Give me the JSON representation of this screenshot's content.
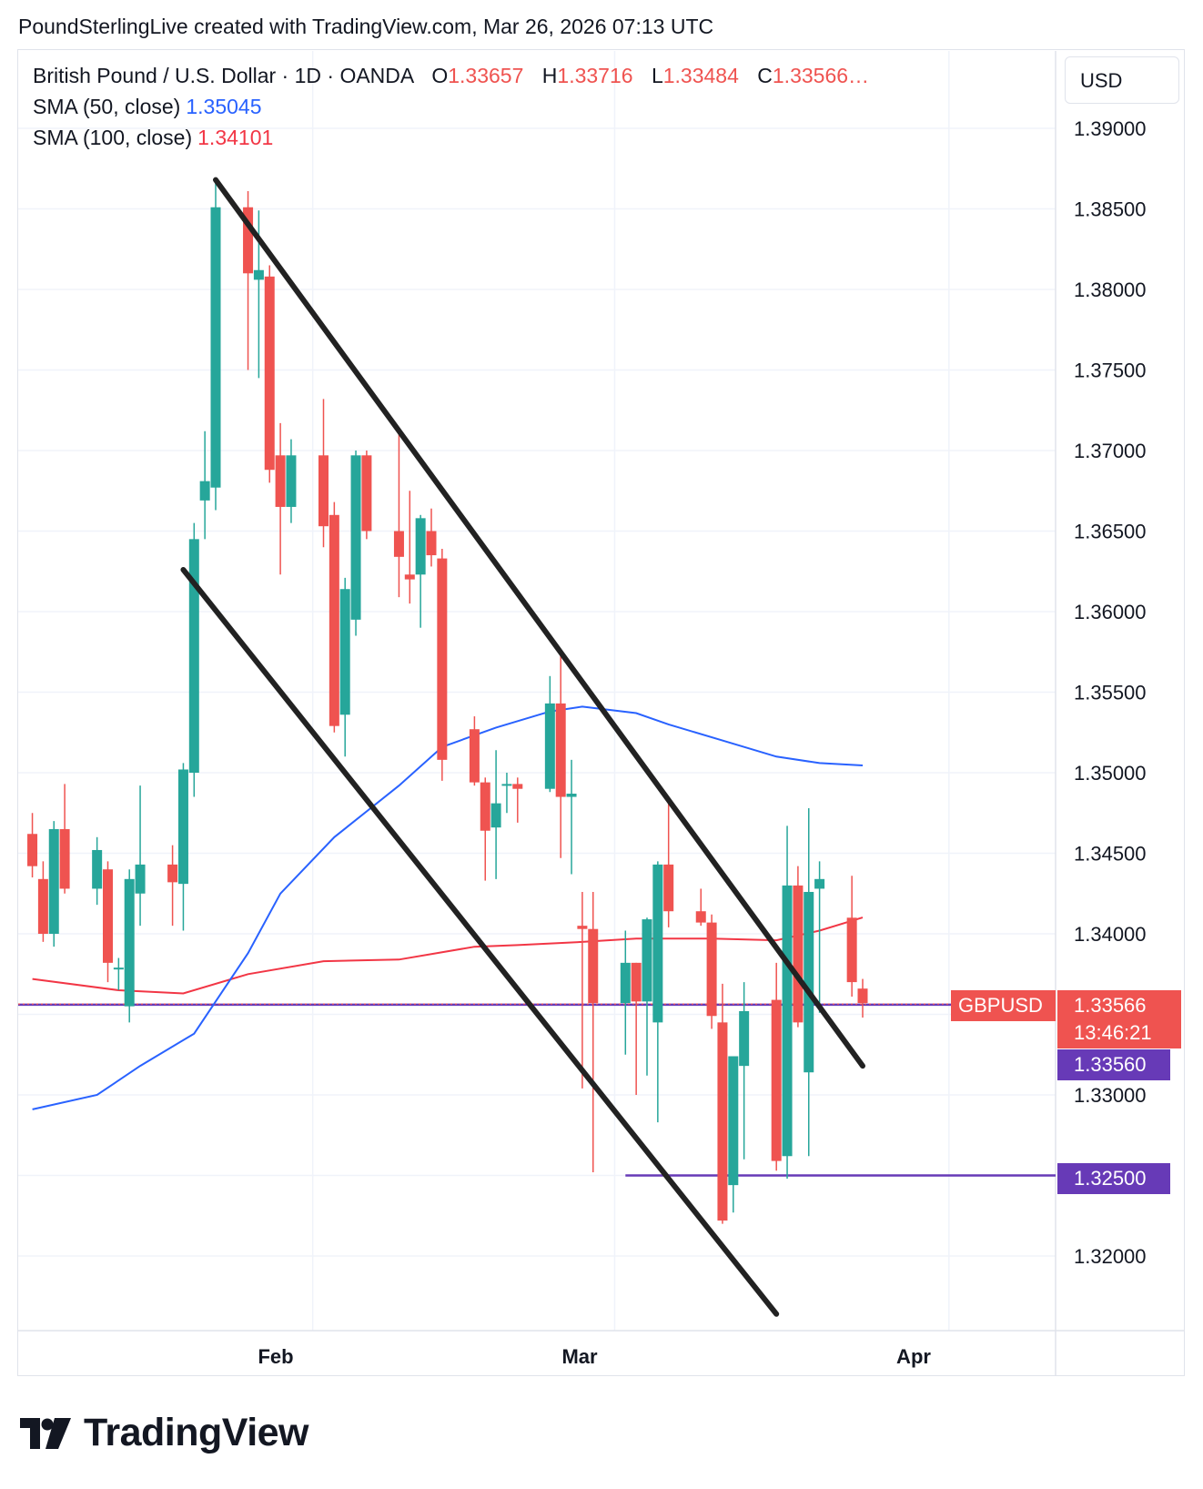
{
  "caption": "PoundSterlingLive created with TradingView.com, Mar 26, 2026 07:13 UTC",
  "legend": {
    "symbol_line": "British Pound / U.S. Dollar · 1D · OANDA",
    "o_label": "O",
    "o_value": "1.33657",
    "h_label": "H",
    "h_value": "1.33716",
    "l_label": "L",
    "l_value": "1.33484",
    "c_label": "C",
    "c_value": "1.33566…",
    "sma50_label": "SMA (50, close)",
    "sma50_value": "1.35045",
    "sma100_label": "SMA (100, close)",
    "sma100_value": "1.34101"
  },
  "currency": "USD",
  "price_tag": {
    "symbol": "GBPUSD",
    "price": "1.33566",
    "countdown": "13:46:21"
  },
  "levels": [
    {
      "label": "1.33560"
    },
    {
      "label": "1.32500"
    }
  ],
  "brand": "TradingView",
  "colors": {
    "up": "#26a69a",
    "down": "#ef5350",
    "sma50": "#2962ff",
    "sma100": "#f23645",
    "level": "#673ab7",
    "trendline": "#222222",
    "grid": "#f0f3fa"
  },
  "chart_data": {
    "type": "candlestick",
    "title": "British Pound / U.S. Dollar · 1D · OANDA",
    "ylim": [
      1.3135,
      1.3935
    ],
    "y_ticks": [
      1.32,
      1.325,
      1.33,
      1.335,
      1.34,
      1.345,
      1.35,
      1.355,
      1.36,
      1.365,
      1.37,
      1.375,
      1.38,
      1.385,
      1.39
    ],
    "y_tick_labels": [
      "1.32000",
      "1.32500",
      "1.33000",
      "1.33500",
      "1.34000",
      "1.34500",
      "1.35000",
      "1.35500",
      "1.36000",
      "1.36500",
      "1.37000",
      "1.37500",
      "1.38000",
      "1.38500",
      "1.39000"
    ],
    "x_ticks": [
      "Feb",
      "Mar",
      "Apr"
    ],
    "grid": true,
    "series": [
      {
        "name": "British Pound / U.S. Dollar",
        "candles": [
          [
            "2026-01-06",
            1.3462,
            1.3475,
            1.3435,
            1.3442
          ],
          [
            "2026-01-07",
            1.3434,
            1.3445,
            1.3395,
            1.34
          ],
          [
            "2026-01-08",
            1.34,
            1.347,
            1.3392,
            1.3465
          ],
          [
            "2026-01-09",
            1.3465,
            1.3493,
            1.3425,
            1.3428
          ],
          [
            "2026-01-12",
            1.3428,
            1.346,
            1.3418,
            1.3452
          ],
          [
            "2026-01-13",
            1.344,
            1.3445,
            1.337,
            1.3382
          ],
          [
            "2026-01-14",
            1.3379,
            1.3385,
            1.3365,
            1.3379
          ],
          [
            "2026-01-15",
            1.3355,
            1.344,
            1.3345,
            1.3434
          ],
          [
            "2026-01-16",
            1.3425,
            1.3492,
            1.3405,
            1.3443
          ],
          [
            "2026-01-19",
            1.3443,
            1.3455,
            1.3405,
            1.3432
          ],
          [
            "2026-01-20",
            1.3431,
            1.3506,
            1.3402,
            1.3502
          ],
          [
            "2026-01-21",
            1.35,
            1.3655,
            1.3485,
            1.3645
          ],
          [
            "2026-01-22",
            1.3669,
            1.3712,
            1.3645,
            1.3681
          ],
          [
            "2026-01-23",
            1.3677,
            1.3869,
            1.3663,
            1.3851
          ],
          [
            "2026-01-26",
            1.3851,
            1.3861,
            1.375,
            1.381
          ],
          [
            "2026-01-27",
            1.3806,
            1.3849,
            1.3745,
            1.3812
          ],
          [
            "2026-01-28",
            1.3808,
            1.3815,
            1.368,
            1.3688
          ],
          [
            "2026-01-29",
            1.3697,
            1.3717,
            1.3623,
            1.3665
          ],
          [
            "2026-01-30",
            1.3665,
            1.3707,
            1.3655,
            1.3697
          ],
          [
            "2026-02-02",
            1.3697,
            1.3732,
            1.364,
            1.3653
          ],
          [
            "2026-02-03",
            1.366,
            1.3668,
            1.3525,
            1.3529
          ],
          [
            "2026-02-04",
            1.3536,
            1.3621,
            1.351,
            1.3614
          ],
          [
            "2026-02-05",
            1.3595,
            1.37,
            1.3585,
            1.3697
          ],
          [
            "2026-02-06",
            1.3697,
            1.37,
            1.3645,
            1.365
          ],
          [
            "2026-02-09",
            1.365,
            1.371,
            1.3609,
            1.3634
          ],
          [
            "2026-02-10",
            1.3623,
            1.3675,
            1.3605,
            1.362
          ],
          [
            "2026-02-11",
            1.3623,
            1.366,
            1.359,
            1.3658
          ],
          [
            "2026-02-12",
            1.365,
            1.3664,
            1.3628,
            1.3635
          ],
          [
            "2026-02-13",
            1.3633,
            1.3639,
            1.3495,
            1.3508
          ],
          [
            "2026-02-16",
            1.3527,
            1.3535,
            1.3492,
            1.3494
          ],
          [
            "2026-02-17",
            1.3494,
            1.3497,
            1.3433,
            1.3464
          ],
          [
            "2026-02-18",
            1.3466,
            1.3514,
            1.3434,
            1.3481
          ],
          [
            "2026-02-19",
            1.3493,
            1.35,
            1.3475,
            1.3493
          ],
          [
            "2026-02-20",
            1.3493,
            1.3497,
            1.3469,
            1.349
          ],
          [
            "2026-02-23",
            1.349,
            1.356,
            1.3488,
            1.3543
          ],
          [
            "2026-02-24",
            1.3543,
            1.3575,
            1.3447,
            1.3485
          ],
          [
            "2026-02-25",
            1.3485,
            1.3508,
            1.3437,
            1.3487
          ],
          [
            "2026-02-26",
            1.3405,
            1.3426,
            1.3304,
            1.3403
          ],
          [
            "2026-02-27",
            1.3403,
            1.3426,
            1.3252,
            1.3357
          ],
          [
            "2026-03-02",
            1.3357,
            1.3402,
            1.3325,
            1.3382
          ],
          [
            "2026-03-03",
            1.3382,
            1.3382,
            1.33,
            1.3358
          ],
          [
            "2026-03-04",
            1.3358,
            1.341,
            1.3312,
            1.3409
          ],
          [
            "2026-03-05",
            1.3345,
            1.3445,
            1.3283,
            1.3443
          ],
          [
            "2026-03-06",
            1.3443,
            1.3484,
            1.3404,
            1.3414
          ],
          [
            "2026-03-09",
            1.3414,
            1.3428,
            1.3405,
            1.3407
          ],
          [
            "2026-03-10",
            1.3407,
            1.3412,
            1.3341,
            1.3349
          ],
          [
            "2026-03-11",
            1.3345,
            1.3369,
            1.322,
            1.3222
          ],
          [
            "2026-03-12",
            1.3244,
            1.3323,
            1.3227,
            1.3324
          ],
          [
            "2026-03-13",
            1.3318,
            1.337,
            1.326,
            1.3352
          ],
          [
            "2026-03-16",
            1.3359,
            1.3382,
            1.3253,
            1.3259
          ],
          [
            "2026-03-17",
            1.3262,
            1.3467,
            1.3248,
            1.343
          ],
          [
            "2026-03-18",
            1.343,
            1.3442,
            1.3342,
            1.3345
          ],
          [
            "2026-03-19",
            1.3314,
            1.3478,
            1.3262,
            1.3426
          ],
          [
            "2026-03-20",
            1.3428,
            1.3445,
            1.3351,
            1.3434
          ],
          [
            "2026-03-23",
            1.341,
            1.3436,
            1.3361,
            1.337
          ],
          [
            "2026-03-24",
            1.3366,
            1.3372,
            1.3348,
            1.3357
          ]
        ]
      },
      {
        "name": "SMA (50, close)",
        "points": [
          [
            "2026-01-06",
            1.3291
          ],
          [
            "2026-01-12",
            1.33
          ],
          [
            "2026-01-16",
            1.3318
          ],
          [
            "2026-01-21",
            1.3338
          ],
          [
            "2026-01-26",
            1.3388
          ],
          [
            "2026-01-29",
            1.3425
          ],
          [
            "2026-02-03",
            1.346
          ],
          [
            "2026-02-09",
            1.3492
          ],
          [
            "2026-02-13",
            1.3516
          ],
          [
            "2026-02-18",
            1.3528
          ],
          [
            "2026-02-23",
            1.3538
          ],
          [
            "2026-02-26",
            1.3541
          ],
          [
            "2026-03-03",
            1.3537
          ],
          [
            "2026-03-06",
            1.353
          ],
          [
            "2026-03-11",
            1.352
          ],
          [
            "2026-03-16",
            1.351
          ],
          [
            "2026-03-20",
            1.3506
          ],
          [
            "2026-03-24",
            1.35045
          ]
        ]
      },
      {
        "name": "SMA (100, close)",
        "points": [
          [
            "2026-01-06",
            1.3372
          ],
          [
            "2026-01-14",
            1.3365
          ],
          [
            "2026-01-20",
            1.3363
          ],
          [
            "2026-01-26",
            1.3375
          ],
          [
            "2026-02-02",
            1.3383
          ],
          [
            "2026-02-09",
            1.3384
          ],
          [
            "2026-02-16",
            1.3392
          ],
          [
            "2026-02-20",
            1.3393
          ],
          [
            "2026-02-26",
            1.3395
          ],
          [
            "2026-03-03",
            1.3397
          ],
          [
            "2026-03-10",
            1.3397
          ],
          [
            "2026-03-16",
            1.3396
          ],
          [
            "2026-03-20",
            1.3402
          ],
          [
            "2026-03-24",
            1.34101
          ]
        ]
      }
    ],
    "trendlines": [
      {
        "from": [
          "2026-01-23",
          1.3868
        ],
        "to": [
          "2026-03-24",
          1.3318
        ]
      },
      {
        "from": [
          "2026-01-20",
          1.3626
        ],
        "to": [
          "2026-03-16",
          1.3164
        ]
      }
    ],
    "horizontal_levels": [
      {
        "price": 1.3356,
        "from": "start"
      },
      {
        "price": 1.325,
        "from": "2026-03-02"
      }
    ]
  }
}
